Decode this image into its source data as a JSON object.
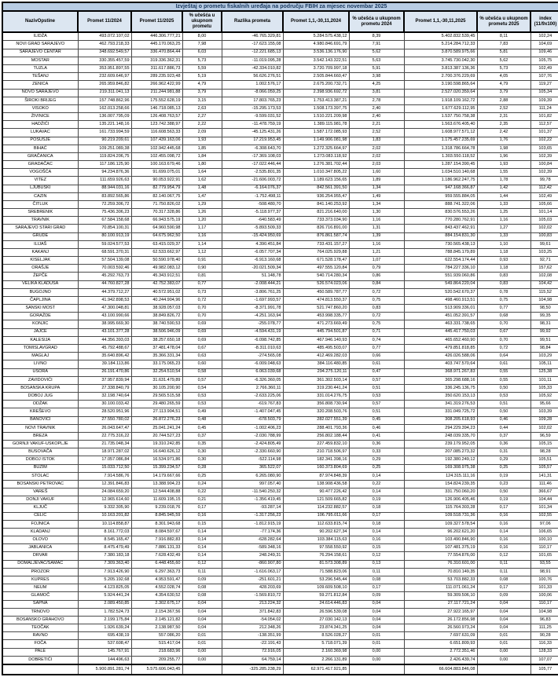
{
  "title": "Izvještaj o prometu fiskalnih uređaja na području FBIH za mjesec novembar 2025",
  "colors": {
    "title_bg": "#b8cce4",
    "title_text": "#17375e",
    "header_bg": "#dce6f1",
    "grid_border": "#4a4a4a",
    "frame_border": "#000000",
    "row_bg": "#ffffff"
  },
  "table": {
    "columns": [
      "NazivOpstine",
      "Promet 11/2024",
      "Promet 11/2025",
      "% učešća u ukupnom prometu",
      "Razlika prometa",
      "Promet 1,1,-30,11,2024",
      "% učešća u ukupnom prometu 2024",
      "Promet 1,1,-30,11,2025",
      "% učešća u ukupnom prometu 2025",
      "index (11/9x100)"
    ],
    "rows": [
      [
        "ILIDŽA",
        "493.072.107,02",
        "446.306.777,21",
        "8,00",
        "-46.765.329,81",
        "5.284.575.438,12",
        "8,39",
        "5.402.832.539,45",
        "8,11",
        "102,24"
      ],
      [
        "NOVI GRAD SARAJEVO",
        "462.793.218,33",
        "445.170.063,25",
        "7,98",
        "-17.623.155,08",
        "4.980.846.691,79",
        "7,91",
        "5.214.284.712,33",
        "7,83",
        "104,69"
      ],
      [
        "SARAJEVO CENTAR",
        "348.692.549,57",
        "336.470.864,44",
        "6,03",
        "-12.221.685,13",
        "3.536.136.176,90",
        "5,62",
        "3.870.589.975,66",
        "5,81",
        "109,46"
      ],
      [
        "MOSTAR",
        "330.355.457,59",
        "319.336.362,31",
        "5,73",
        "-11.019.095,28",
        "3.542.143.322,51",
        "5,63",
        "3.745.730.042,30",
        "5,62",
        "105,75"
      ],
      [
        "TUZLA",
        "353.951.897,55",
        "311.617.886,73",
        "5,59",
        "-42.334.010,82",
        "3.720.709.997,18",
        "5,91",
        "3.813.387.136,36",
        "5,73",
        "102,49"
      ],
      [
        "TEŠANJ",
        "232.609.646,97",
        "289.235.923,48",
        "5,19",
        "56.626.276,51",
        "2.505.844.660,47",
        "3,98",
        "2.700.376.229,69",
        "4,05",
        "107,76"
      ],
      [
        "ZENICA",
        "265.959.846,82",
        "266.962.422,99",
        "4,79",
        "1.002.576,17",
        "2.675.200.732,71",
        "4,25",
        "3.190.598.865,64",
        "4,79",
        "119,27"
      ],
      [
        "NOVO SARAJEVO",
        "219.311.041,13",
        "211.244.981,88",
        "3,79",
        "-8.066.059,25",
        "2.398.936.692,72",
        "3,81",
        "2.527.020.359,64",
        "3,79",
        "105,34"
      ],
      [
        "ŠIROKI BRIJEG",
        "157.748.862,96",
        "175.552.628,19",
        "3,15",
        "17.803.765,23",
        "1.753.413.387,21",
        "2,78",
        "1.918.109.162,72",
        "2,88",
        "109,39"
      ],
      [
        "VISOKO",
        "162.013.258,66",
        "146.718.085,13",
        "2,63",
        "-15.295.173,53",
        "1.508.173.397,75",
        "2,40",
        "1.677.629.112,95",
        "2,52",
        "111,24"
      ],
      [
        "ŽIVINICE",
        "136.007.795,09",
        "126.408.763,57",
        "2,27",
        "-9.599.031,52",
        "1.510.221.209,98",
        "2,40",
        "1.537.750.758,38",
        "2,31",
        "101,82"
      ],
      [
        "HADŽIĆI",
        "135.221.148,16",
        "123.742.388,97",
        "2,22",
        "-11.478.759,19",
        "1.389.115.981,78",
        "2,21",
        "1.563.676.405,40",
        "2,35",
        "112,57"
      ],
      [
        "LUKAVAC",
        "161.733.994,59",
        "116.608.563,33",
        "2,09",
        "-45.125.431,26",
        "1.587.172.085,93",
        "2,52",
        "1.608.977.571,12",
        "2,42",
        "101,37"
      ],
      [
        "POSUŠJE",
        "90.219.209,61",
        "107.439.163,06",
        "1,93",
        "17.219.953,45",
        "1.149.906.081,98",
        "1,83",
        "1.175.457.235,69",
        "1,76",
        "102,22"
      ],
      [
        "BIHAĆ",
        "109.251.089,38",
        "102.942.445,68",
        "1,85",
        "-6.308.643,70",
        "1.272.325.664,97",
        "2,02",
        "1.318.786.664,78",
        "1,98",
        "103,65"
      ],
      [
        "GRAČANICA",
        "119.824.206,75",
        "102.455.098,72",
        "1,84",
        "-17.369.108,03",
        "1.273.083.118,92",
        "2,02",
        "1.303.550.118,52",
        "1,96",
        "102,39"
      ],
      [
        "GRADAČAC",
        "117.186.125,90",
        "100.163.679,46",
        "1,80",
        "-17.022.446,44",
        "1.276.381.702,44",
        "2,03",
        "1.287.154.390,45",
        "1,93",
        "100,84"
      ],
      [
        "VOGOŠĆA",
        "94.234.876,36",
        "91.699.075,01",
        "1,64",
        "-2.535.801,35",
        "1.010.347.805,22",
        "1,60",
        "1.034.510.140,68",
        "1,55",
        "102,39"
      ],
      [
        "VITEZ",
        "111.659.926,63",
        "90.053.922,91",
        "1,62",
        "-21.606.003,72",
        "1.189.623.156,65",
        "1,89",
        "1.186.962.247,75",
        "1,78",
        "99,78"
      ],
      [
        "LJUBUŠKI",
        "88.944.031,16",
        "82.779.954,79",
        "1,48",
        "-6.164.076,37",
        "842.561.391,50",
        "1,34",
        "947.168.366,87",
        "1,42",
        "112,42"
      ],
      [
        "CAZIN",
        "83.892.565,86",
        "82.140.067,75",
        "1,47",
        "-1.752.498,11",
        "936.254.955,47",
        "1,49",
        "959.555.884,05",
        "1,44",
        "102,49"
      ],
      [
        "ČITLUK",
        "72.259.306,72",
        "71.750.826,02",
        "1,29",
        "-508.480,70",
        "841.140.253,92",
        "1,34",
        "888.741.322,06",
        "1,33",
        "105,66"
      ],
      [
        "SREBRENIK",
        "75.436.306,23",
        "70.317.328,86",
        "1,26",
        "-5.118.977,37",
        "821.216.640,00",
        "1,30",
        "830.576.553,26",
        "1,25",
        "101,14"
      ],
      [
        "TRAVNIK",
        "67.584.158,68",
        "66.943.575,19",
        "1,20",
        "-640.583,49",
        "733.373.034,90",
        "1,16",
        "770.280.762,91",
        "1,16",
        "105,03"
      ],
      [
        "SARAJEVO STARI GRAD",
        "70.854.100,31",
        "64.960.590,98",
        "1,17",
        "-5.893.509,33",
        "826.716.891,00",
        "1,31",
        "843.437.462,91",
        "1,27",
        "102,02"
      ],
      [
        "GRUDE",
        "80.100.913,19",
        "64.675.962,50",
        "1,16",
        "-15.424.950,69",
        "876.861.587,74",
        "1,39",
        "884.154.831,30",
        "1,33",
        "100,83"
      ],
      [
        "ILIJAŠ",
        "59.024.577,53",
        "63.415.029,37",
        "1,14",
        "4.390.451,84",
        "733.431.157,27",
        "1,16",
        "730.565.438,13",
        "1,10",
        "99,61"
      ],
      [
        "KAKANJ",
        "68.591.370,31",
        "62.533.662,97",
        "1,12",
        "-6.057.707,34",
        "764.025.929,88",
        "1,21",
        "788.845.179,89",
        "1,18",
        "103,25"
      ],
      [
        "KISELJAK",
        "57.504.139,08",
        "50.590.978,40",
        "0,91",
        "-6.913.160,68",
        "671.528.178,47",
        "1,07",
        "622.554.174,44",
        "0,93",
        "92,71"
      ],
      [
        "ORAŠJE",
        "70.003.592,46",
        "49.982.083,12",
        "0,90",
        "-20.021.509,34",
        "497.555.120,84",
        "0,79",
        "784.227.336,10",
        "1,18",
        "157,62"
      ],
      [
        "ŽEPČE",
        "45.292.763,73",
        "45.343.912,51",
        "0,81",
        "51.148,78",
        "540.714.280,34",
        "0,86",
        "551.939.060,86",
        "0,83",
        "102,08"
      ],
      [
        "VELIKA KLADUŠA",
        "44.760.827,28",
        "42.752.383,07",
        "0,77",
        "-2.008.444,21",
        "526.574.023,06",
        "0,84",
        "549.864.220,04",
        "0,83",
        "104,42"
      ],
      [
        "BUGOJNO",
        "44.379.712,27",
        "40.572.951,02",
        "0,73",
        "-3.806.761,25",
        "450.589.787,77",
        "0,72",
        "520.542.670,37",
        "0,78",
        "115,52"
      ],
      [
        "ČAPLJINA",
        "41.942.898,53",
        "40.244.904,96",
        "0,72",
        "-1.697.993,57",
        "474.813.550,37",
        "0,75",
        "498.460.913,51",
        "0,75",
        "104,98"
      ],
      [
        "SANSKI MOST",
        "47.300.048,81",
        "38.928.057,03",
        "0,70",
        "-8.371.991,78",
        "521.747.860,20",
        "0,83",
        "513.909.336,01",
        "0,77",
        "98,50"
      ],
      [
        "GORAŽDE",
        "43.100.990,66",
        "38.849.826,72",
        "0,70",
        "-4.251.163,94",
        "453.998.335,77",
        "0,72",
        "451.052.391,57",
        "0,68",
        "99,35"
      ],
      [
        "KONJIC",
        "38.995.669,30",
        "38.740.590,53",
        "0,69",
        "-255.078,77",
        "471.273.669,49",
        "0,75",
        "463.331.738,65",
        "0,70",
        "98,31"
      ],
      [
        "JAJCE",
        "43.101.377,28",
        "38.506.946,09",
        "0,69",
        "-4.594.431,19",
        "445.794.501,87",
        "0,71",
        "445.417.750,03",
        "0,67",
        "99,92"
      ],
      [
        "KALESIJA",
        "44.356.393,03",
        "38.257.650,18",
        "0,69",
        "-6.098.742,85",
        "467.946.140,93",
        "0,74",
        "465.652.460,90",
        "0,70",
        "99,51"
      ],
      [
        "TOMISLAVGRAD",
        "45.792.488,67",
        "37.481.478,04",
        "0,67",
        "-8.311.010,63",
        "485.495.503,07",
        "0,77",
        "479.851.818,85",
        "0,72",
        "98,84"
      ],
      [
        "MAGLAJ",
        "35.640.896,42",
        "35.366.331,34",
        "0,63",
        "-274.565,08",
        "412.469.282,03",
        "0,66",
        "426.026.588,06",
        "0,64",
        "103,29"
      ],
      [
        "LIVNO",
        "39.184.113,86",
        "33.175.065,23",
        "0,60",
        "-6.009.048,63",
        "384.116.480,85",
        "0,61",
        "403.747.570,64",
        "0,61",
        "105,11"
      ],
      [
        "USORA",
        "26.191.470,86",
        "32.254.510,54",
        "0,58",
        "6.063.039,68",
        "294.275.120,11",
        "0,47",
        "368.971.267,83",
        "0,55",
        "125,38"
      ],
      [
        "ZAVIDOVIĆI",
        "37.957.839,94",
        "31.631.479,89",
        "0,57",
        "-6.326.360,05",
        "361.302.503,14",
        "0,57",
        "365.298.688,16",
        "0,55",
        "101,11"
      ],
      [
        "BOSANSKA KRUPA",
        "27.338.840,79",
        "30.105.200,90",
        "0,54",
        "2.766.360,11",
        "319.230.441,24",
        "0,51",
        "336.245.136,75",
        "0,50",
        "105,33"
      ],
      [
        "DOBOJ JUG",
        "32.198.740,64",
        "29.565.515,58",
        "0,53",
        "-2.633.225,06",
        "331.014.276,75",
        "0,53",
        "350.620.153,13",
        "0,53",
        "105,92"
      ],
      [
        "ODŽAK",
        "30.100.033,42",
        "29.480.265,59",
        "0,53",
        "-619.767,83",
        "356.808.730,94",
        "0,57",
        "341.319.276,53",
        "0,51",
        "95,66"
      ],
      [
        "KREŠEVO",
        "28.520.951,96",
        "27.113.904,51",
        "0,49",
        "-1.407.047,45",
        "320.208.503,76",
        "0,51",
        "331.049.725,72",
        "0,50",
        "103,39"
      ],
      [
        "BANOVIĆI",
        "27.550.780,02",
        "26.872.276,23",
        "0,48",
        "-678.503,79",
        "282.027.551,39",
        "0,45",
        "308.205.618,93",
        "0,46",
        "109,28"
      ],
      [
        "NOVI TRAVNIK",
        "26.043.647,47",
        "25.041.241,24",
        "0,45",
        "-1.002.406,23",
        "288.401.793,36",
        "0,46",
        "294.229.394,23",
        "0,44",
        "102,02"
      ],
      [
        "BREZA",
        "22.775.316,22",
        "20.744.527,23",
        "0,37",
        "-2.030.788,99",
        "256.802.188,44",
        "0,41",
        "248.039.335,70",
        "0,37",
        "96,59"
      ],
      [
        "GORNJI VAKUF-USKOPLJE",
        "21.735.048,34",
        "19.310.242,85",
        "0,35",
        "-2.424.805,49",
        "227.459.832,10",
        "0,36",
        "239.179.952,05",
        "0,36",
        "105,15"
      ],
      [
        "BUSOVAČA",
        "18.971.287,02",
        "16.640.626,12",
        "0,30",
        "-2.330.660,90",
        "210.718.506,97",
        "0,33",
        "207.085.273,32",
        "0,31",
        "98,28"
      ],
      [
        "DOBOJ ISTOK",
        "17.057.086,84",
        "16.534.971,86",
        "0,30",
        "-522.114,98",
        "182.341.398,16",
        "0,29",
        "192.380.249,12",
        "0,29",
        "105,51"
      ],
      [
        "BUŽIM",
        "15.033.712,50",
        "15.399.234,57",
        "0,28",
        "365.522,07",
        "160.373.804,69",
        "0,25",
        "169.308.975,38",
        "0,25",
        "105,57"
      ],
      [
        "STOLAC",
        "7.914.586,76",
        "14.179.667,66",
        "0,25",
        "6.265.080,90",
        "87.974.848,39",
        "0,14",
        "124.315.111,16",
        "0,19",
        "141,31"
      ],
      [
        "BOSANSKI PETROVAC",
        "12.391.846,83",
        "13.388.904,23",
        "0,24",
        "997.057,40",
        "138.908.436,58",
        "0,22",
        "154.824.239,35",
        "0,23",
        "111,46"
      ],
      [
        "VAREŠ",
        "24.084.659,20",
        "12.544.408,88",
        "0,22",
        "-11.540.250,32",
        "90.477.226,42",
        "0,14",
        "331.750.060,20",
        "0,50",
        "366,67"
      ],
      [
        "DONJI VAKUF",
        "12.965.614,60",
        "11.609.195,15",
        "0,21",
        "-1.356.419,45",
        "121.509.665,82",
        "0,19",
        "126.906.405,46",
        "0,19",
        "104,44"
      ],
      [
        "KLJUČ",
        "9.332.305,90",
        "9.239.018,76",
        "0,17",
        "-93.287,14",
        "114.232.882,57",
        "0,18",
        "115.764.303,28",
        "0,17",
        "101,34"
      ],
      [
        "ČELIĆ",
        "10.163.201,82",
        "8.845.945,59",
        "0,16",
        "-1.317.256,23",
        "106.795.011,66",
        "0,17",
        "109.518.731,36",
        "0,16",
        "102,55"
      ],
      [
        "FOJNICA",
        "10.114.858,87",
        "8.301.943,68",
        "0,15",
        "-1.812.915,19",
        "112.633.815,74",
        "0,18",
        "109.327.578,54",
        "0,16",
        "97,06"
      ],
      [
        "KLADANJ",
        "8.161.772,03",
        "8.084.597,67",
        "0,14",
        "-77.174,36",
        "90.202.627,34",
        "0,14",
        "96.202.621,20",
        "0,14",
        "106,65"
      ],
      [
        "OLOVO",
        "8.545.165,47",
        "7.916.882,83",
        "0,14",
        "-628.282,64",
        "103.384.115,63",
        "0,16",
        "103.490.846,90",
        "0,16",
        "100,10"
      ],
      [
        "JABLANICA",
        "8.475.479,49",
        "7.886.131,33",
        "0,14",
        "-589.348,16",
        "97.558.550,92",
        "0,15",
        "107.481.375,19",
        "0,16",
        "110,17"
      ],
      [
        "DRVAR",
        "7.380.183,18",
        "7.628.432,49",
        "0,14",
        "248.249,31",
        "76.294.158,61",
        "0,12",
        "77.554.876,00",
        "0,12",
        "101,65"
      ],
      [
        "DOMALJEVAC/ŠAMAC",
        "7.309.363,40",
        "6.448.455,60",
        "0,12",
        "-860.907,80",
        "81.573.308,89",
        "0,13",
        "76.310.601,00",
        "0,11",
        "93,55"
      ],
      [
        "PROZOR",
        "7.913.426,90",
        "6.297.363,73",
        "0,11",
        "-1.616.063,17",
        "71.588.823,06",
        "0,11",
        "70.810.149,35",
        "0,11",
        "98,91"
      ],
      [
        "KUPRES",
        "5.205.192,68",
        "4.953.591,47",
        "0,09",
        "-251.601,21",
        "53.296.545,44",
        "0,08",
        "53.703.882,33",
        "0,08",
        "100,76"
      ],
      [
        "NEUM",
        "4.123.825,05",
        "4.552.028,74",
        "0,08",
        "428.203,69",
        "109.609.508,10",
        "0,17",
        "111.071.061,24",
        "0,17",
        "101,33"
      ],
      [
        "GLAMOČ",
        "5.924.441,24",
        "4.354.630,52",
        "0,08",
        "-1.569.810,72",
        "59.271.812,84",
        "0,09",
        "59.309.506,10",
        "0,09",
        "100,06"
      ],
      [
        "SAPNA",
        "2.089.450,85",
        "2.302.675,17",
        "0,04",
        "213.224,32",
        "24.614.446,83",
        "0,04",
        "27.117.721,24",
        "0,04",
        "110,17"
      ],
      [
        "TRNOVO",
        "1.782.524,73",
        "2.154.367,56",
        "0,04",
        "371.842,83",
        "26.596.539,08",
        "0,04",
        "27.922.165,97",
        "0,04",
        "104,98"
      ],
      [
        "BOSANSKO GRAHOVO",
        "2.199.175,84",
        "2.145.121,82",
        "0,04",
        "-54.054,02",
        "27.030.142,13",
        "0,04",
        "26.172.856,98",
        "0,04",
        "96,83"
      ],
      [
        "TEOČAK",
        "1.926.639,24",
        "2.138.987,50",
        "0,04",
        "212.348,26",
        "23.874.341,25",
        "0,04",
        "26.560.973,24",
        "0,04",
        "111,25"
      ],
      [
        "RAVNO",
        "695.438,19",
        "557.086,20",
        "0,01",
        "-138.351,99",
        "8.526.028,27",
        "0,01",
        "7.697.631,09",
        "0,01",
        "90,28"
      ],
      [
        "FOČA",
        "537.608,47",
        "515.417,04",
        "0,01",
        "-22.191,43",
        "5.718.071,39",
        "0,01",
        "6.651.809,93",
        "0,01",
        "116,33"
      ],
      [
        "PALE",
        "145.767,91",
        "218.683,96",
        "0,00",
        "72.916,05",
        "2.160.369,98",
        "0,00",
        "2.772.351,46",
        "0,00",
        "128,33"
      ],
      [
        "DOBRETIĆI",
        "144.496,63",
        "209.255,77",
        "0,00",
        "64.759,14",
        "2.266.131,89",
        "0,00",
        "2.426.439,74",
        "0,00",
        "107,07"
      ]
    ],
    "total": [
      "",
      "5.900.891.281,74",
      "5.575.606.043,45",
      "",
      "-325.285.238,29",
      "62.971.417.921,85",
      "",
      "66.604.883.846,08",
      "",
      "105,77"
    ]
  }
}
